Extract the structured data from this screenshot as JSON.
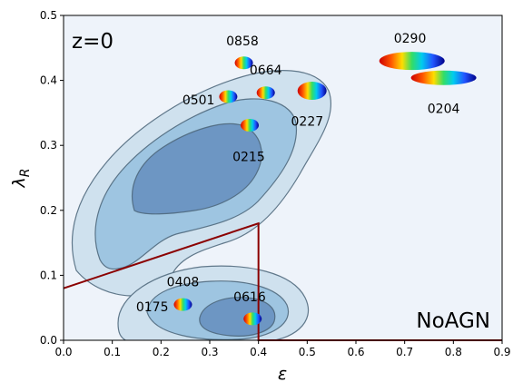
{
  "chart_data": {
    "type": "scatter",
    "xlabel": "ε",
    "ylabel": "λ_R",
    "xlim": [
      0.0,
      0.9
    ],
    "ylim": [
      0.0,
      0.5
    ],
    "xticks": [
      "0.0",
      "0.1",
      "0.2",
      "0.3",
      "0.4",
      "0.5",
      "0.6",
      "0.7",
      "0.8",
      "0.9"
    ],
    "yticks": [
      "0.0",
      "0.1",
      "0.2",
      "0.3",
      "0.4",
      "0.5"
    ],
    "grid": false,
    "background": "#eef3fa",
    "redshift_label": "z=0",
    "model_label": "NoAGN",
    "contour_colors": [
      "#cfe1ee",
      "#9ec5e1",
      "#6d96c3"
    ],
    "divider_color": "#8b0000",
    "divider_line": {
      "x": [
        0.0,
        0.4,
        0.4,
        0.9
      ],
      "y": [
        0.08,
        0.18,
        0.0,
        0.0
      ]
    },
    "galaxies": [
      {
        "id": "0858",
        "x": 0.37,
        "y": 0.427,
        "label_x": 0.367,
        "label_y": 0.461
      },
      {
        "id": "0664",
        "x": 0.415,
        "y": 0.381,
        "label_x": 0.415,
        "label_y": 0.416
      },
      {
        "id": "0501",
        "x": 0.338,
        "y": 0.375,
        "label_x": 0.277,
        "label_y": 0.37
      },
      {
        "id": "0227",
        "x": 0.51,
        "y": 0.384,
        "label_x": 0.5,
        "label_y": 0.337
      },
      {
        "id": "0215",
        "x": 0.382,
        "y": 0.331,
        "label_x": 0.38,
        "label_y": 0.283
      },
      {
        "id": "0290",
        "x": 0.715,
        "y": 0.43,
        "label_x": 0.711,
        "label_y": 0.465
      },
      {
        "id": "0204",
        "x": 0.78,
        "y": 0.404,
        "label_x": 0.78,
        "label_y": 0.357
      },
      {
        "id": "0408",
        "x": 0.245,
        "y": 0.055,
        "label_x": 0.245,
        "label_y": 0.09
      },
      {
        "id": "0175",
        "x": 0.245,
        "y": 0.055,
        "label_x": 0.182,
        "label_y": 0.052
      },
      {
        "id": "0616",
        "x": 0.388,
        "y": 0.033,
        "label_x": 0.382,
        "label_y": 0.067
      }
    ]
  }
}
